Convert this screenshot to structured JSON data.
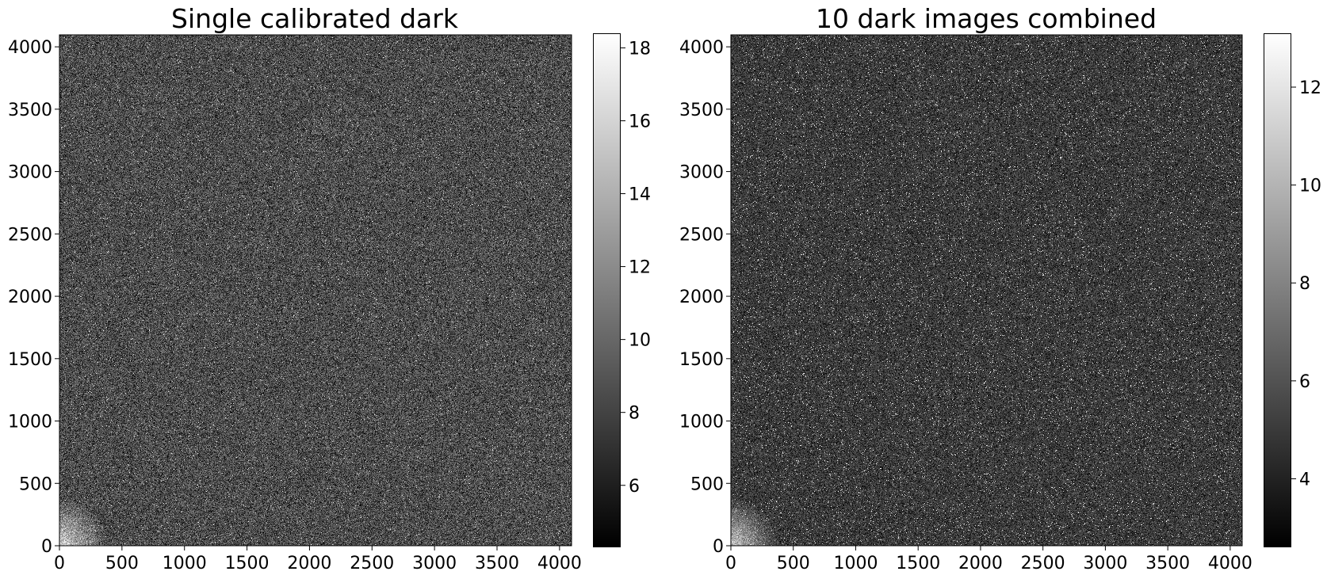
{
  "chart_data": [
    {
      "type": "heatmap",
      "title": "Single calibrated dark",
      "xlabel": "",
      "ylabel": "",
      "xlim": [
        0,
        4096
      ],
      "ylim": [
        0,
        4096
      ],
      "x_ticks": [
        0,
        500,
        1000,
        1500,
        2000,
        2500,
        3000,
        3500,
        4000
      ],
      "y_ticks": [
        0,
        500,
        1000,
        1500,
        2000,
        2500,
        3000,
        3500,
        4000
      ],
      "colormap": "gray",
      "colorbar": {
        "range": [
          4.3,
          18.4
        ],
        "ticks": [
          6,
          8,
          10,
          12,
          14,
          16,
          18
        ]
      },
      "background_level": 8.5,
      "features": "random noise with sparse bright hot pixels; brighter glow at lower-left corner"
    },
    {
      "type": "heatmap",
      "title": "10 dark images combined",
      "xlabel": "",
      "ylabel": "",
      "xlim": [
        0,
        4096
      ],
      "ylim": [
        0,
        4096
      ],
      "x_ticks": [
        0,
        500,
        1000,
        1500,
        2000,
        2500,
        3000,
        3500,
        4000
      ],
      "y_ticks": [
        0,
        500,
        1000,
        1500,
        2000,
        2500,
        3000,
        3500,
        4000
      ],
      "colormap": "gray",
      "colorbar": {
        "range": [
          2.6,
          13.1
        ],
        "ticks": [
          4,
          6,
          8,
          10,
          12
        ]
      },
      "background_level": 5.0,
      "features": "smoother noise with many bright hot pixels; brighter glow at lower-left corner"
    }
  ]
}
